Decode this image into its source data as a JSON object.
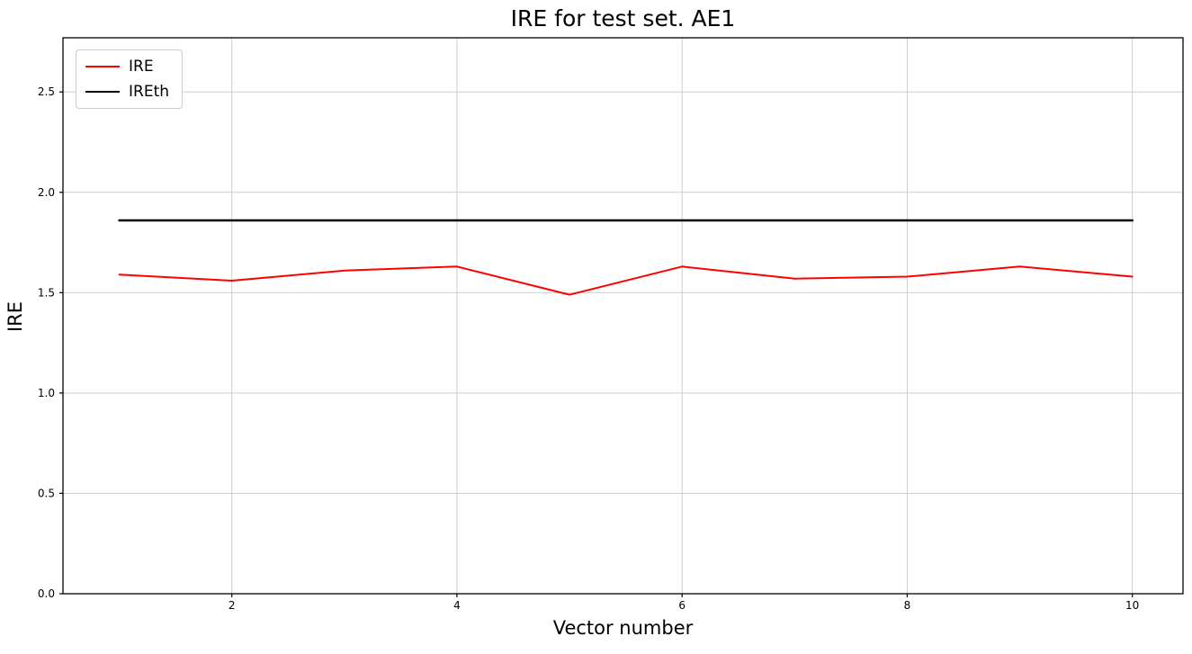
{
  "chart_data": {
    "type": "line",
    "title": "IRE for test set. AE1",
    "xlabel": "Vector number",
    "ylabel": "IRE",
    "x": [
      1,
      2,
      3,
      4,
      5,
      6,
      7,
      8,
      9,
      10
    ],
    "series": [
      {
        "name": "IRE",
        "color": "#ff0000",
        "width": 2,
        "values": [
          1.59,
          1.56,
          1.61,
          1.63,
          1.49,
          1.63,
          1.57,
          1.58,
          1.63,
          1.58
        ]
      },
      {
        "name": "IREth",
        "color": "#000000",
        "width": 2.5,
        "values": [
          1.86,
          1.86,
          1.86,
          1.86,
          1.86,
          1.86,
          1.86,
          1.86,
          1.86,
          1.86
        ]
      }
    ],
    "xlim": [
      0.5,
      10.45
    ],
    "ylim": [
      0,
      2.77
    ],
    "xticks": [
      2,
      4,
      6,
      8,
      10
    ],
    "xtick_labels": [
      "2",
      "4",
      "6",
      "8",
      "10"
    ],
    "yticks": [
      0.0,
      0.5,
      1.0,
      1.5,
      2.0,
      2.5
    ],
    "ytick_labels": [
      "0.0",
      "0.5",
      "1.0",
      "1.5",
      "2.0",
      "2.5"
    ],
    "grid": true,
    "grid_color": "#c8c8c8",
    "frame_color": "#000000",
    "legend_position": "upper left"
  }
}
